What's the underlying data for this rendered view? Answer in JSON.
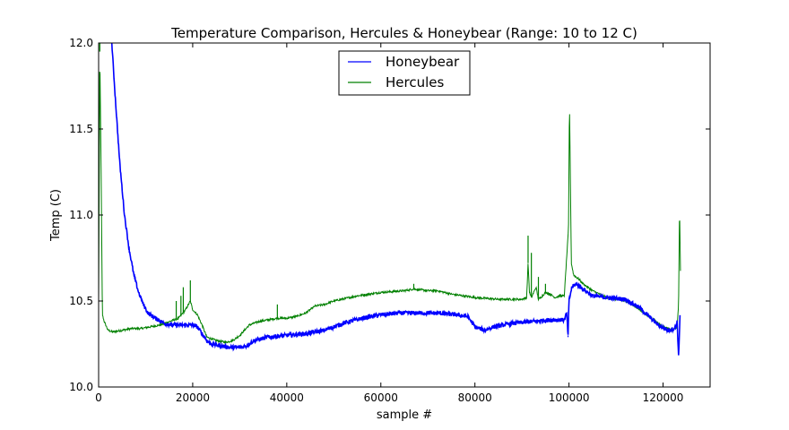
{
  "chart_data": {
    "type": "line",
    "title": "Temperature Comparison, Hercules & Honeybear (Range: 10 to 12 C)",
    "xlabel": "sample #",
    "ylabel": "Temp (C)",
    "xlim": [
      0,
      130000
    ],
    "ylim": [
      10.0,
      12.0
    ],
    "xticks": [
      0,
      20000,
      40000,
      60000,
      80000,
      100000,
      120000
    ],
    "xtick_labels": [
      "0",
      "20000",
      "40000",
      "60000",
      "80000",
      "100000",
      "120000"
    ],
    "yticks": [
      10.0,
      10.5,
      11.0,
      11.5,
      12.0
    ],
    "ytick_labels": [
      "10.0",
      "10.5",
      "11.0",
      "11.5",
      "12.0"
    ],
    "grid": false,
    "legend_position": "top-center",
    "series": [
      {
        "name": "Honeybear",
        "color": "#0000ff",
        "noise": 0.012,
        "x": [
          2800,
          3500,
          4500,
          5500,
          6500,
          7500,
          8500,
          9500,
          10500,
          12000,
          14000,
          16000,
          18000,
          20000,
          21000,
          22000,
          23000,
          24000,
          26000,
          28000,
          30000,
          31500,
          33000,
          36000,
          40000,
          44000,
          48000,
          52000,
          56000,
          60000,
          64000,
          68000,
          72000,
          76000,
          78500,
          80000,
          82000,
          84000,
          88000,
          92000,
          96000,
          99000,
          99500,
          99800,
          100000,
          100600,
          101500,
          103000,
          105000,
          108000,
          112000,
          115000,
          117000,
          119000,
          121000,
          122500,
          123000,
          123300,
          123600
        ],
        "y": [
          12.0,
          11.7,
          11.3,
          11.0,
          10.8,
          10.65,
          10.55,
          10.48,
          10.43,
          10.4,
          10.37,
          10.36,
          10.36,
          10.36,
          10.35,
          10.31,
          10.27,
          10.25,
          10.24,
          10.23,
          10.23,
          10.24,
          10.27,
          10.29,
          10.3,
          10.31,
          10.33,
          10.37,
          10.4,
          10.42,
          10.43,
          10.43,
          10.43,
          10.42,
          10.41,
          10.35,
          10.33,
          10.35,
          10.37,
          10.38,
          10.39,
          10.39,
          10.43,
          10.3,
          10.5,
          10.58,
          10.6,
          10.57,
          10.53,
          10.52,
          10.51,
          10.46,
          10.41,
          10.36,
          10.33,
          10.34,
          10.38,
          10.17,
          10.42
        ]
      },
      {
        "name": "Hercules",
        "color": "#008000",
        "noise": 0.006,
        "x": [
          0,
          250,
          500,
          800,
          1200,
          2000,
          3000,
          5000,
          7000,
          9000,
          11000,
          13000,
          15000,
          17000,
          18500,
          19500,
          20000,
          21000,
          22000,
          23000,
          25000,
          27000,
          28500,
          30000,
          32000,
          34000,
          36000,
          38000,
          40000,
          42000,
          44000,
          46000,
          48000,
          50000,
          55000,
          60000,
          65000,
          67000,
          70000,
          72000,
          75000,
          80000,
          85000,
          90000,
          91000,
          91300,
          91600,
          92000,
          93000,
          93500,
          94000,
          95000,
          96000,
          97000,
          98000,
          99000,
          99500,
          99900,
          100100,
          100500,
          101000,
          102000,
          103000,
          105000,
          108000,
          110000,
          112000,
          114000,
          116000,
          118000,
          120000,
          122000,
          123000,
          123300,
          123500,
          123700
        ],
        "y": [
          10.5,
          11.95,
          11.35,
          10.42,
          10.38,
          10.33,
          10.32,
          10.33,
          10.34,
          10.34,
          10.35,
          10.36,
          10.38,
          10.4,
          10.45,
          10.5,
          10.45,
          10.42,
          10.36,
          10.29,
          10.27,
          10.26,
          10.27,
          10.3,
          10.36,
          10.38,
          10.39,
          10.4,
          10.4,
          10.41,
          10.43,
          10.47,
          10.48,
          10.5,
          10.53,
          10.55,
          10.56,
          10.57,
          10.56,
          10.56,
          10.54,
          10.52,
          10.51,
          10.51,
          10.52,
          10.72,
          10.55,
          10.52,
          10.58,
          10.51,
          10.52,
          10.55,
          10.54,
          10.52,
          10.53,
          10.53,
          10.75,
          10.92,
          11.67,
          10.72,
          10.65,
          10.63,
          10.6,
          10.56,
          10.52,
          10.51,
          10.5,
          10.47,
          10.43,
          10.39,
          10.35,
          10.33,
          10.35,
          10.48,
          11.05,
          10.68
        ]
      }
    ],
    "spikes": [
      {
        "series": 1,
        "x": 100100,
        "y": 11.67
      },
      {
        "series": 1,
        "x": 123500,
        "y": 11.05
      },
      {
        "series": 1,
        "x": 91300,
        "y": 10.88
      },
      {
        "series": 1,
        "x": 92000,
        "y": 10.78
      },
      {
        "series": 1,
        "x": 93500,
        "y": 10.64
      },
      {
        "series": 1,
        "x": 95000,
        "y": 10.6
      },
      {
        "series": 1,
        "x": 19500,
        "y": 10.62
      },
      {
        "series": 1,
        "x": 18000,
        "y": 10.58
      },
      {
        "series": 1,
        "x": 16500,
        "y": 10.5
      },
      {
        "series": 1,
        "x": 17500,
        "y": 10.53
      },
      {
        "series": 1,
        "x": 38000,
        "y": 10.48
      },
      {
        "series": 1,
        "x": 67000,
        "y": 10.6
      },
      {
        "series": 1,
        "x": 250,
        "y": 12.0
      },
      {
        "series": 0,
        "x": 123300,
        "y": 10.17
      },
      {
        "series": 0,
        "x": 99800,
        "y": 10.29
      }
    ]
  }
}
